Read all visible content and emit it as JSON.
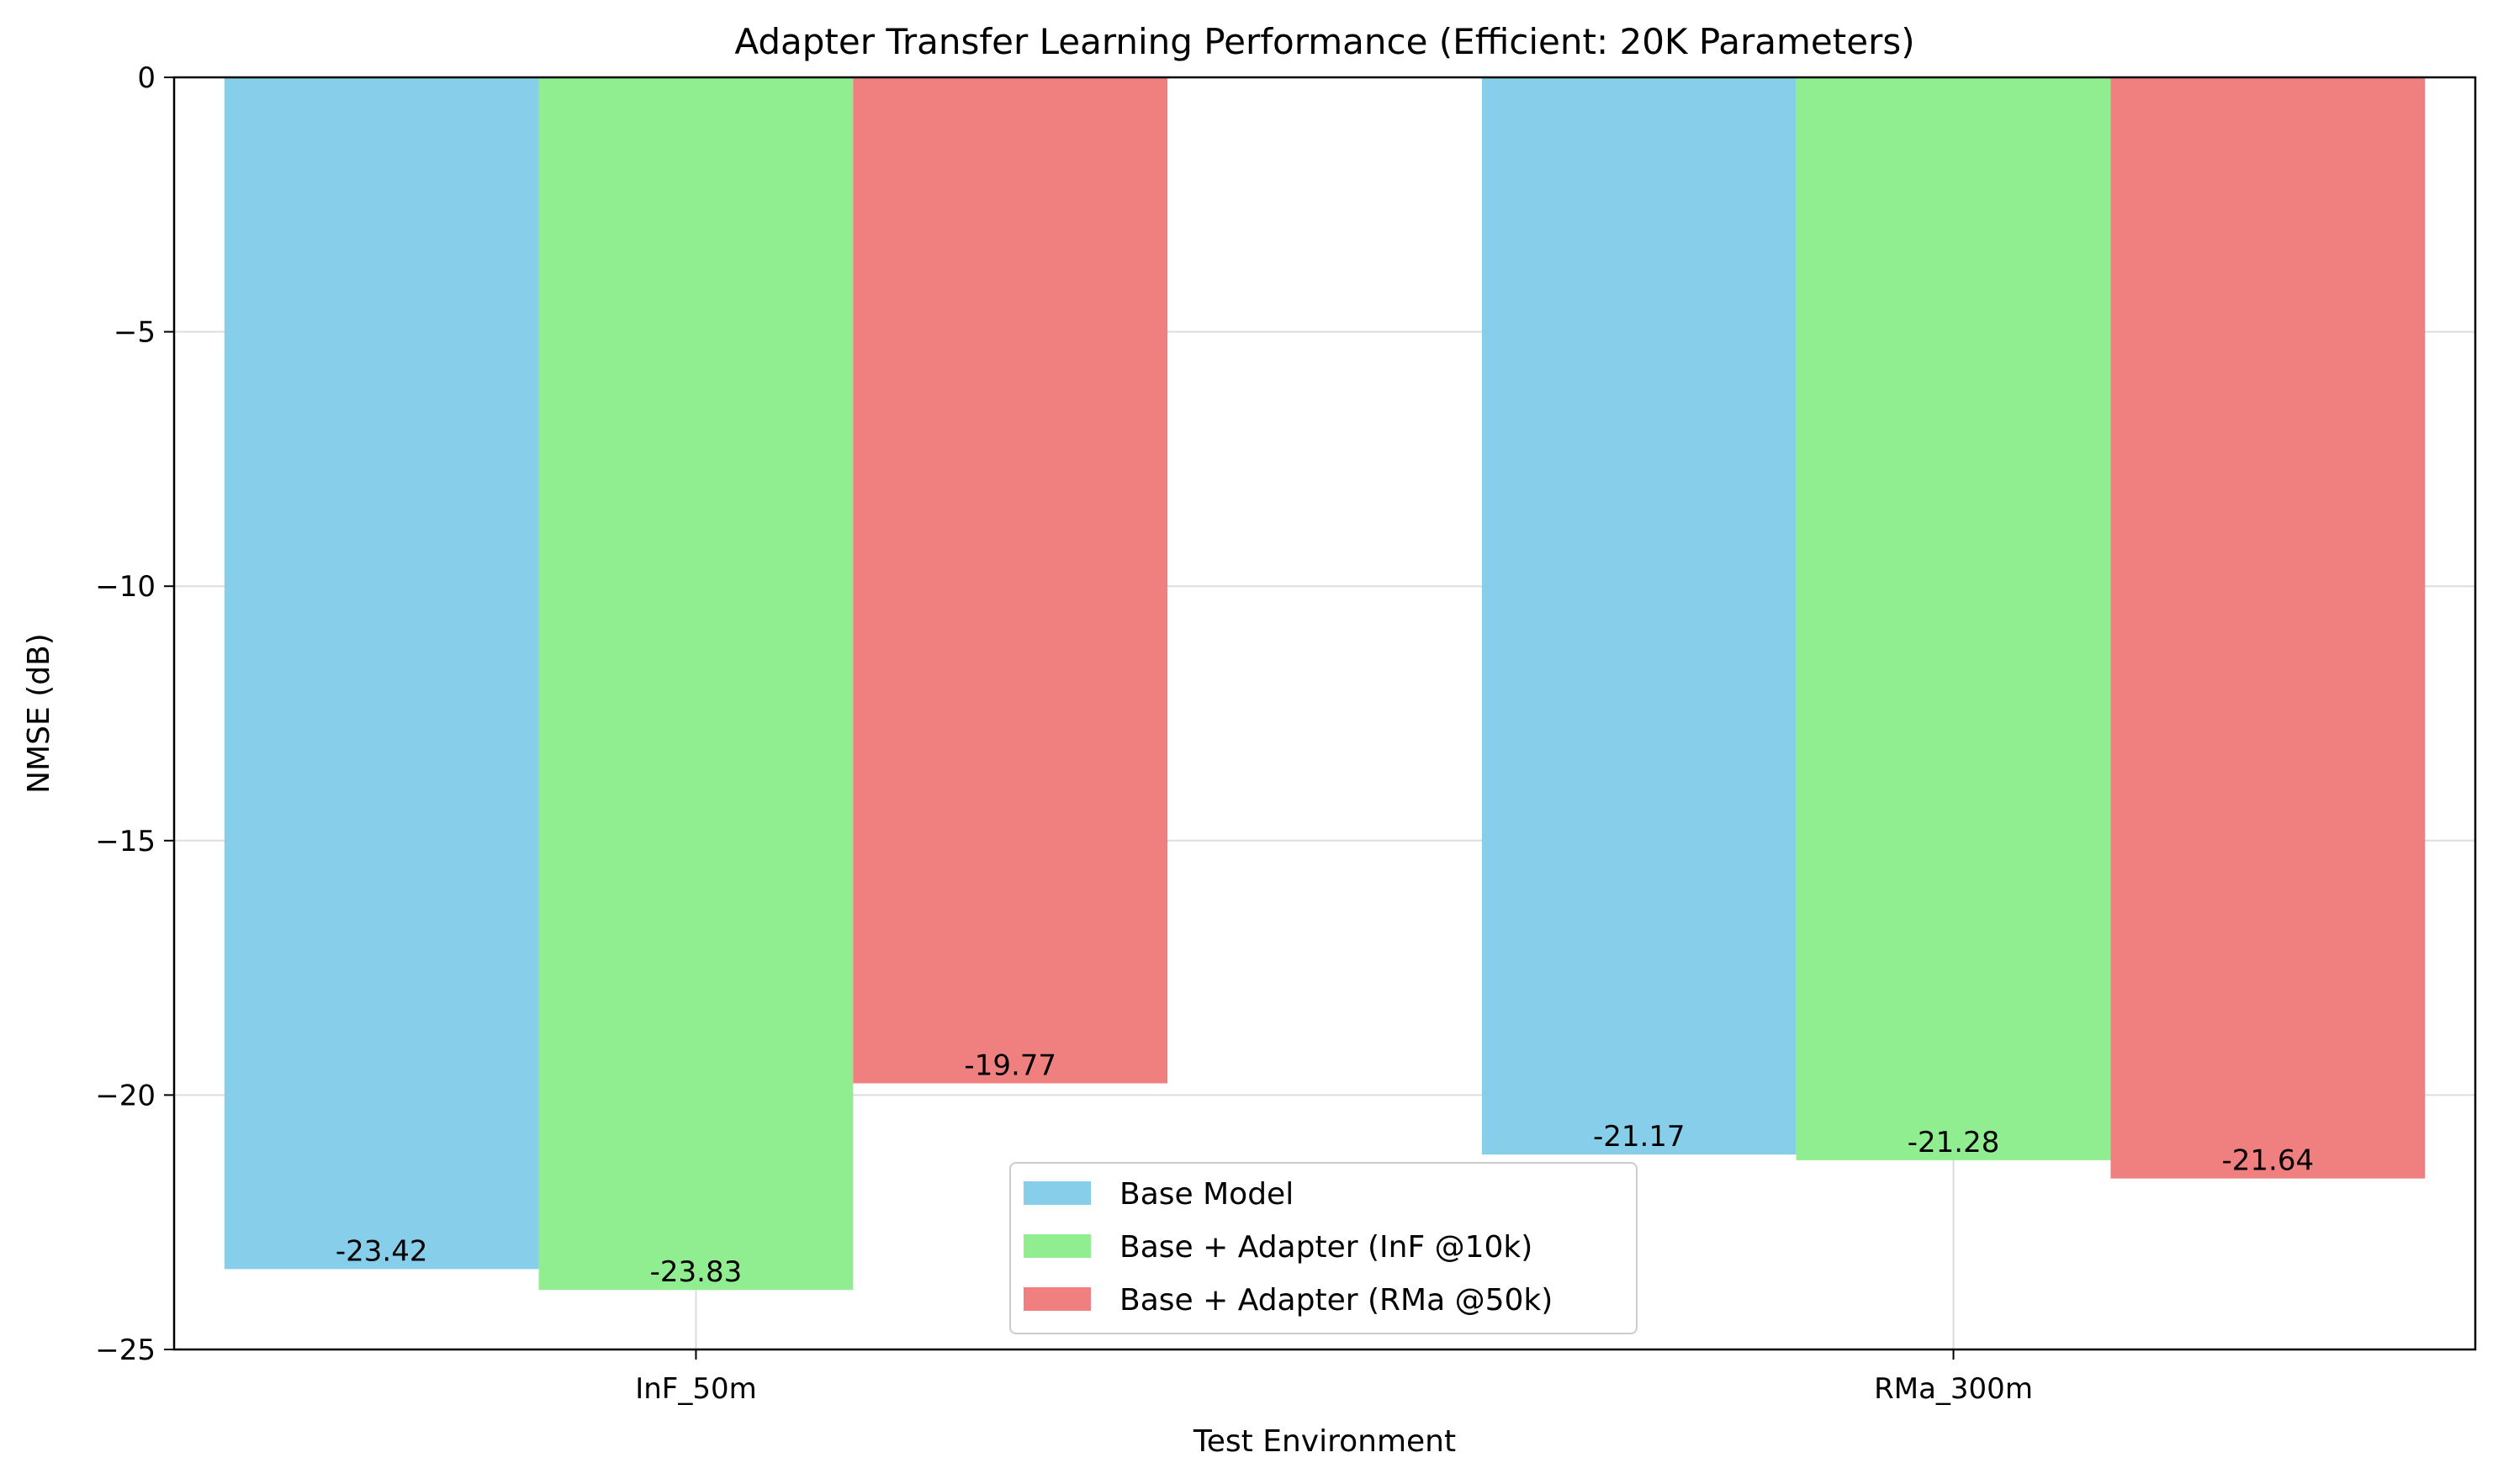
{
  "chart_data": {
    "type": "bar",
    "title": "Adapter Transfer Learning Performance (Efficient: 20K Parameters)",
    "xlabel": "Test Environment",
    "ylabel": "NMSE (dB)",
    "categories": [
      "InF_50m",
      "RMa_300m"
    ],
    "series": [
      {
        "name": "Base Model",
        "values": [
          -23.42,
          -21.17
        ],
        "labels": [
          "-23.42",
          "-21.17"
        ],
        "color": "#87CEEB"
      },
      {
        "name": "Base + Adapter (InF @10k)",
        "values": [
          -23.83,
          -21.28
        ],
        "labels": [
          "-23.83",
          "-21.28"
        ],
        "color": "#90EE90"
      },
      {
        "name": "Base + Adapter (RMa @50k)",
        "values": [
          -19.77,
          -21.64
        ],
        "labels": [
          "-19.77",
          "-21.64"
        ],
        "color": "#F08080"
      }
    ],
    "ylim": [
      -25,
      0
    ],
    "yticks": [
      0,
      -5,
      -10,
      -15,
      -20,
      -25
    ],
    "ytick_labels": [
      "0",
      "−5",
      "−10",
      "−15",
      "−20",
      "−25"
    ],
    "grid": true,
    "legend_position": "lower-center"
  }
}
